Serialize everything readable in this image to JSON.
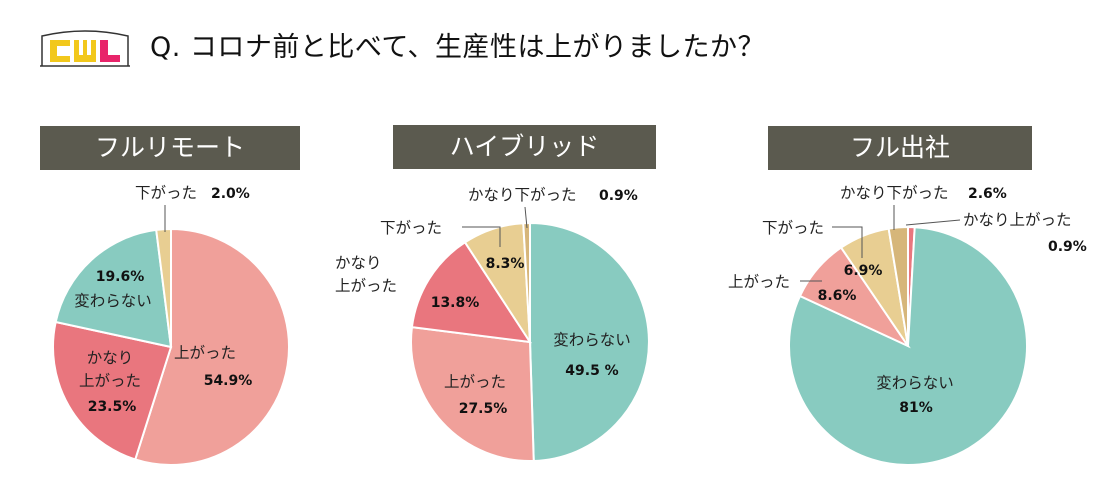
{
  "header": {
    "question": "Q. コロナ前と比べて、生産性は上がりましたか？",
    "logo_letters": [
      "C",
      "W",
      "L"
    ]
  },
  "colors": {
    "up": "#f0a09a",
    "up_lot": "#e9767e",
    "same": "#88cbc0",
    "down": "#e8ce92",
    "down_lot": "#d6b67a",
    "band": "#5b5a4f",
    "logo_yellow": "#f2c81c",
    "logo_pink": "#e8246a"
  },
  "chart_data": [
    {
      "type": "pie",
      "title": "フルリモート",
      "slices": [
        {
          "label": "上がった",
          "value": 54.9,
          "pct_text": "54.9%",
          "color": "#f0a09a"
        },
        {
          "label": "かなり\n上がった",
          "value": 23.5,
          "pct_text": "23.5%",
          "color": "#e9767e"
        },
        {
          "label": "変わらない",
          "value": 19.6,
          "pct_text": "19.6%",
          "color": "#88cbc0"
        },
        {
          "label": "下がった",
          "value": 2.0,
          "pct_text": "2.0%",
          "color": "#e8ce92"
        }
      ]
    },
    {
      "type": "pie",
      "title": "ハイブリッド",
      "slices": [
        {
          "label": "変わらない",
          "value": 49.5,
          "pct_text": "49.5 %",
          "color": "#88cbc0"
        },
        {
          "label": "上がった",
          "value": 27.5,
          "pct_text": "27.5%",
          "color": "#f0a09a"
        },
        {
          "label": "かなり\n上がった",
          "value": 13.8,
          "pct_text": "13.8%",
          "color": "#e9767e"
        },
        {
          "label": "下がった",
          "value": 8.3,
          "pct_text": "8.3%",
          "color": "#e8ce92"
        },
        {
          "label": "かなり下がった",
          "value": 0.9,
          "pct_text": "0.9%",
          "color": "#d6b67a"
        }
      ]
    },
    {
      "type": "pie",
      "title": "フル出社",
      "slices": [
        {
          "label": "かなり上がった",
          "value": 0.9,
          "pct_text": "0.9%",
          "color": "#e9767e"
        },
        {
          "label": "変わらない",
          "value": 81,
          "pct_text": "81%",
          "color": "#88cbc0"
        },
        {
          "label": "上がった",
          "value": 8.6,
          "pct_text": "8.6%",
          "color": "#f0a09a"
        },
        {
          "label": "下がった",
          "value": 6.9,
          "pct_text": "6.9%",
          "color": "#e8ce92"
        },
        {
          "label": "かなり下がった",
          "value": 2.6,
          "pct_text": "2.6%",
          "color": "#d6b67a"
        }
      ]
    }
  ]
}
